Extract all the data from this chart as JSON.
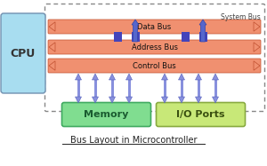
{
  "title": "Bus Layout in Microcontroller",
  "bg_color": "#ffffff",
  "cpu_label": "CPU",
  "system_bus_label": "System Bus",
  "bus_labels": [
    "Data Bus",
    "Address Bus",
    "Control Bus"
  ],
  "memory_label": "Memory",
  "io_label": "I/O Ports",
  "bus_body_color": "#f09070",
  "bus_edge_color": "#c05030",
  "bus_arrow_tip_color": "#e07050",
  "cpu_fill": "#a8ddf0",
  "cpu_edge": "#7090b0",
  "memory_fill_top": "#70e090",
  "memory_fill": "#80dd90",
  "memory_edge": "#40aa60",
  "io_fill": "#c8e878",
  "io_edge": "#88aa40",
  "dashed_edge": "#888888",
  "conn_color": "#4444bb",
  "arrow_color": "#8890dd",
  "arrow_edge": "#5560bb",
  "title_color": "#222222",
  "sys_bus_color": "#444444",
  "label_color": "#333333"
}
